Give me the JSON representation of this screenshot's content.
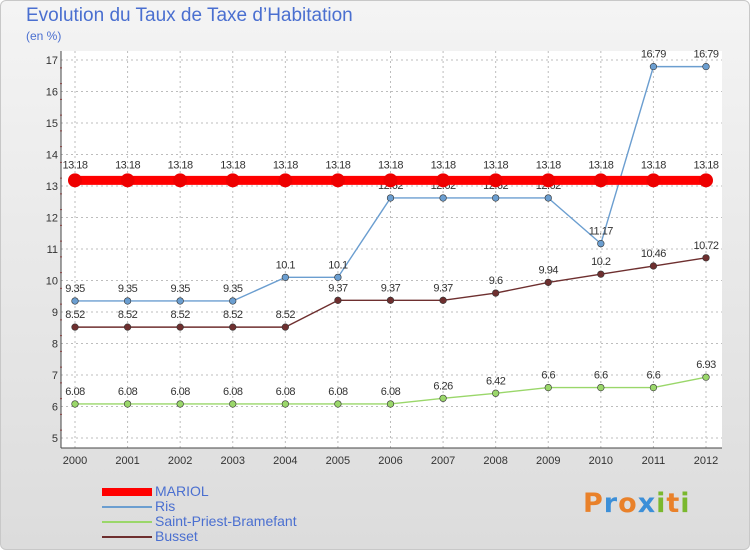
{
  "title": "Evolution du Taux de Taxe d’Habitation",
  "unit": "(en %)",
  "logo": {
    "letters": [
      "P",
      "r",
      "o",
      "x",
      "i",
      "t",
      "i"
    ],
    "colors": [
      "#e9812a",
      "#3c8fd8",
      "#e9812a",
      "#3c8fd8",
      "#7ab82e",
      "#e9812a",
      "#7ab82e"
    ]
  },
  "chart_data": {
    "type": "line",
    "x": [
      "2000",
      "2001",
      "2002",
      "2003",
      "2004",
      "2005",
      "2006",
      "2007",
      "2008",
      "2009",
      "2010",
      "2011",
      "2012"
    ],
    "ylim": [
      5,
      17
    ],
    "yticks": [
      "5",
      "6",
      "7",
      "8",
      "9",
      "10",
      "11",
      "12",
      "13",
      "14",
      "15",
      "16",
      "17"
    ],
    "grid": true,
    "legend_position": "bottom-left",
    "series": [
      {
        "name": "MARIOL",
        "color": "#ff0000",
        "values": [
          13.18,
          13.18,
          13.18,
          13.18,
          13.18,
          13.18,
          13.18,
          13.18,
          13.18,
          13.18,
          13.18,
          13.18,
          13.18
        ],
        "labels": [
          "13.18",
          "13.18",
          "13.18",
          "13.18",
          "13.18",
          "13.18",
          "13.18",
          "13.18",
          "13.18",
          "13.18",
          "13.18",
          "13.18",
          "13.18"
        ]
      },
      {
        "name": "Ris",
        "color": "#6b9ed0",
        "values": [
          9.35,
          9.35,
          9.35,
          9.35,
          10.1,
          10.1,
          12.62,
          12.62,
          12.62,
          12.62,
          11.17,
          16.79,
          16.79
        ],
        "labels": [
          "9.35",
          "9.35",
          "9.35",
          "9.35",
          "10.1",
          "10.1",
          "12.62",
          "12.62",
          "12.62",
          "12.62",
          "11.17",
          "16.79",
          "16.79"
        ]
      },
      {
        "name": "Saint-Priest-Bramefant",
        "color": "#9ad76a",
        "values": [
          6.08,
          6.08,
          6.08,
          6.08,
          6.08,
          6.08,
          6.08,
          6.26,
          6.42,
          6.6,
          6.6,
          6.6,
          6.93
        ],
        "labels": [
          "6.08",
          "6.08",
          "6.08",
          "6.08",
          "6.08",
          "6.08",
          "6.08",
          "6.26",
          "6.42",
          "6.6",
          "6.6",
          "6.6",
          "6.93"
        ]
      },
      {
        "name": "Busset",
        "color": "#6e2f2f",
        "values": [
          8.52,
          8.52,
          8.52,
          8.52,
          8.52,
          9.37,
          9.37,
          9.37,
          9.6,
          9.94,
          10.2,
          10.46,
          10.72
        ],
        "labels": [
          "8.52",
          "8.52",
          "8.52",
          "8.52",
          "8.52",
          "9.37",
          "9.37",
          "9.37",
          "9.6",
          "9.94",
          "10.2",
          "10.46",
          "10.72"
        ]
      }
    ]
  }
}
